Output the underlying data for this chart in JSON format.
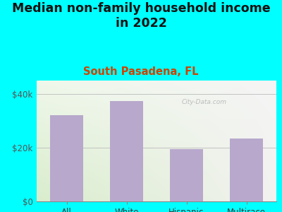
{
  "title": "Median non-family household income\nin 2022",
  "subtitle": "South Pasadena, FL",
  "categories": [
    "All",
    "White",
    "Hispanic",
    "Multirace"
  ],
  "values": [
    32000,
    37500,
    19500,
    23500
  ],
  "bar_color": "#b8a8cc",
  "title_fontsize": 12.5,
  "subtitle_fontsize": 10.5,
  "subtitle_color": "#cc4400",
  "title_color": "#111111",
  "bg_color": "#00ffff",
  "plot_bg_color_left": "#d8eec8",
  "plot_bg_color_right": "#f0f0ee",
  "yticks": [
    0,
    20000,
    40000
  ],
  "ytick_labels": [
    "$0",
    "$20k",
    "$40k"
  ],
  "ylim": [
    0,
    45000
  ],
  "watermark": "City-Data.com"
}
